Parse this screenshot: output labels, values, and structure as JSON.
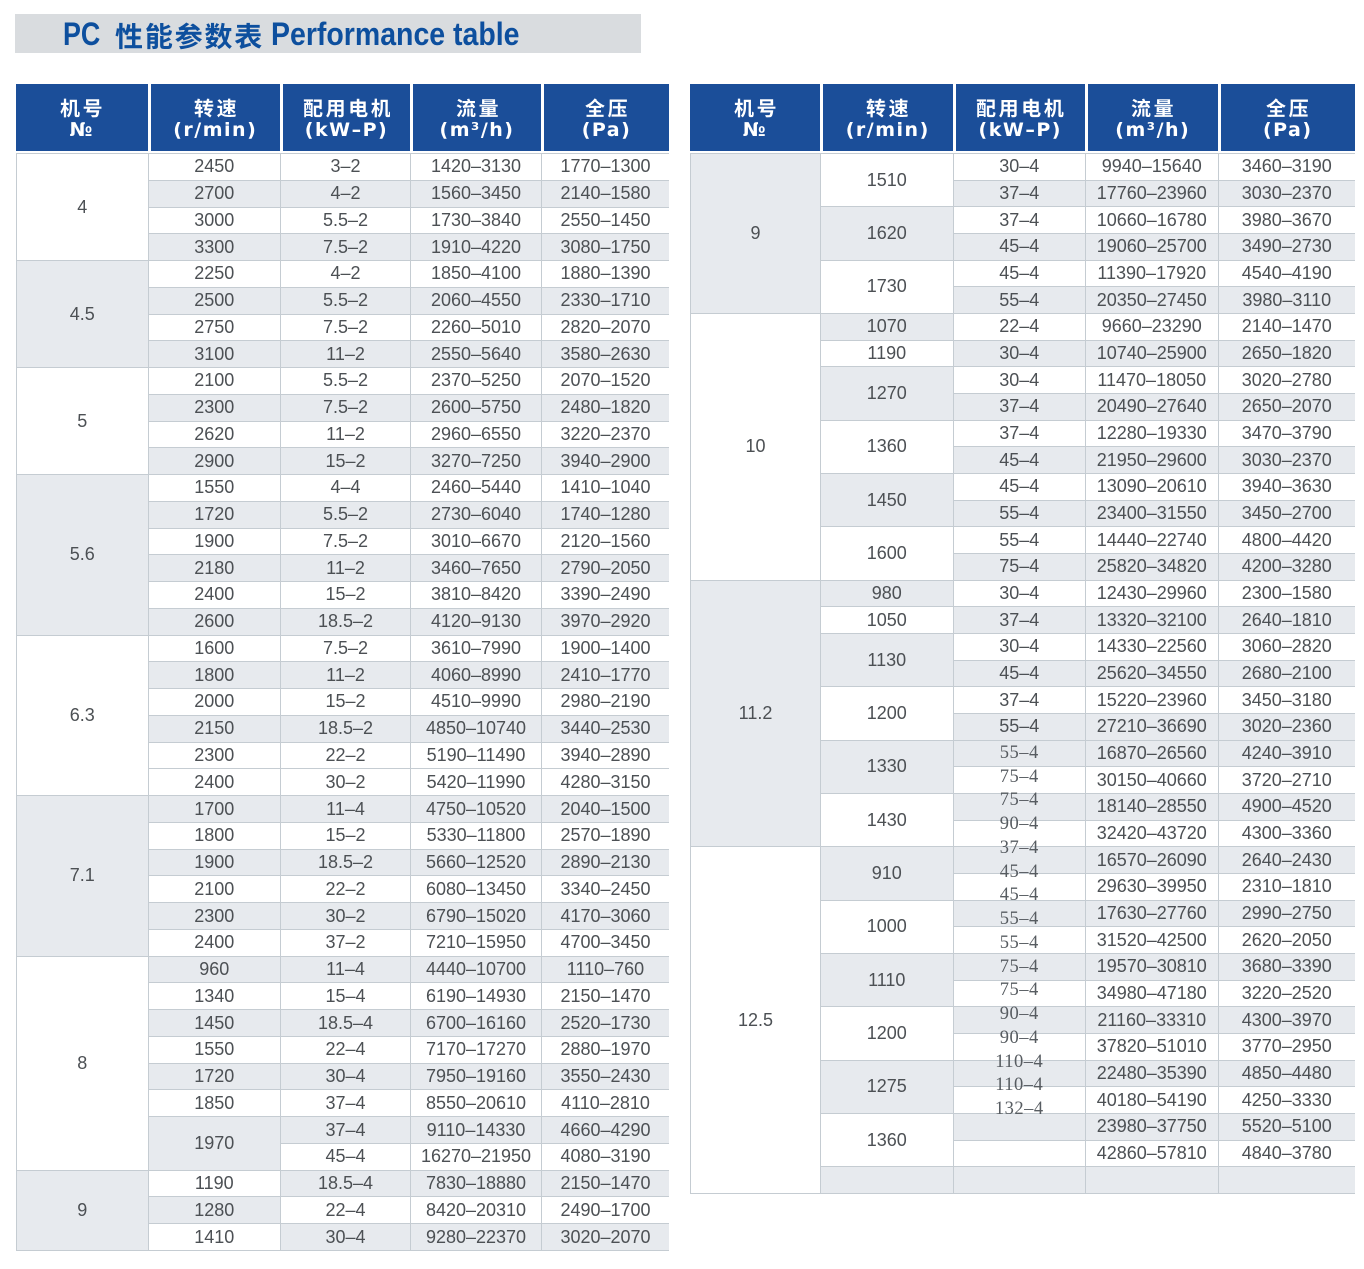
{
  "title": {
    "prefix": "PC",
    "zh": "性能参数表",
    "en": "Performance table"
  },
  "columns": [
    {
      "zh": "机号",
      "sub": "№"
    },
    {
      "zh": "转速",
      "sub": "(r/min)"
    },
    {
      "zh": "配用电机",
      "sub": "(kW–P)"
    },
    {
      "zh": "流量",
      "sub": "(m³/h)"
    },
    {
      "zh": "全压",
      "sub": "(Pa)"
    }
  ],
  "colors": {
    "header_blue": "#1b4e99",
    "title_blue": "#0d4f9e",
    "title_band_gray": "#d9dcdf",
    "row_gray": "#e7eaee",
    "border": "#c5ccd2",
    "text": "#43474a"
  },
  "left_table": {
    "groups": [
      {
        "no": "4",
        "no_shade": "w",
        "rows": [
          {
            "speed": "2450",
            "kw": "3–2",
            "flow": "1420–3130",
            "press": "1770–1300",
            "shade": "w"
          },
          {
            "speed": "2700",
            "kw": "4–2",
            "flow": "1560–3450",
            "press": "2140–1580",
            "shade": "g"
          },
          {
            "speed": "3000",
            "kw": "5.5–2",
            "flow": "1730–3840",
            "press": "2550–1450",
            "shade": "w"
          },
          {
            "speed": "3300",
            "kw": "7.5–2",
            "flow": "1910–4220",
            "press": "3080–1750",
            "shade": "g"
          }
        ]
      },
      {
        "no": "4.5",
        "no_shade": "g",
        "rows": [
          {
            "speed": "2250",
            "kw": "4–2",
            "flow": "1850–4100",
            "press": "1880–1390",
            "shade": "w"
          },
          {
            "speed": "2500",
            "kw": "5.5–2",
            "flow": "2060–4550",
            "press": "2330–1710",
            "shade": "g"
          },
          {
            "speed": "2750",
            "kw": "7.5–2",
            "flow": "2260–5010",
            "press": "2820–2070",
            "shade": "w"
          },
          {
            "speed": "3100",
            "kw": "11–2",
            "flow": "2550–5640",
            "press": "3580–2630",
            "shade": "g"
          }
        ]
      },
      {
        "no": "5",
        "no_shade": "w",
        "rows": [
          {
            "speed": "2100",
            "kw": "5.5–2",
            "flow": "2370–5250",
            "press": "2070–1520",
            "shade": "w"
          },
          {
            "speed": "2300",
            "kw": "7.5–2",
            "flow": "2600–5750",
            "press": "2480–1820",
            "shade": "g"
          },
          {
            "speed": "2620",
            "kw": "11–2",
            "flow": "2960–6550",
            "press": "3220–2370",
            "shade": "w"
          },
          {
            "speed": "2900",
            "kw": "15–2",
            "flow": "3270–7250",
            "press": "3940–2900",
            "shade": "g"
          }
        ]
      },
      {
        "no": "5.6",
        "no_shade": "g",
        "rows": [
          {
            "speed": "1550",
            "kw": "4–4",
            "flow": "2460–5440",
            "press": "1410–1040",
            "shade": "w"
          },
          {
            "speed": "1720",
            "kw": "5.5–2",
            "flow": "2730–6040",
            "press": "1740–1280",
            "shade": "g"
          },
          {
            "speed": "1900",
            "kw": "7.5–2",
            "flow": "3010–6670",
            "press": "2120–1560",
            "shade": "w"
          },
          {
            "speed": "2180",
            "kw": "11–2",
            "flow": "3460–7650",
            "press": "2790–2050",
            "shade": "g"
          },
          {
            "speed": "2400",
            "kw": "15–2",
            "flow": "3810–8420",
            "press": "3390–2490",
            "shade": "w"
          },
          {
            "speed": "2600",
            "kw": "18.5–2",
            "flow": "4120–9130",
            "press": "3970–2920",
            "shade": "g"
          }
        ]
      },
      {
        "no": "6.3",
        "no_shade": "w",
        "rows": [
          {
            "speed": "1600",
            "kw": "7.5–2",
            "flow": "3610–7990",
            "press": "1900–1400",
            "shade": "w"
          },
          {
            "speed": "1800",
            "kw": "11–2",
            "flow": "4060–8990",
            "press": "2410–1770",
            "shade": "g"
          },
          {
            "speed": "2000",
            "kw": "15–2",
            "flow": "4510–9990",
            "press": "2980–2190",
            "shade": "w"
          },
          {
            "speed": "2150",
            "kw": "18.5–2",
            "flow": "4850–10740",
            "press": "3440–2530",
            "shade": "g"
          },
          {
            "speed": "2300",
            "kw": "22–2",
            "flow": "5190–11490",
            "press": "3940–2890",
            "shade": "w"
          },
          {
            "speed": "2400",
            "kw": "30–2",
            "flow": "5420–11990",
            "press": "4280–3150",
            "shade": "w"
          }
        ]
      },
      {
        "no": "7.1",
        "no_shade": "g",
        "rows": [
          {
            "speed": "1700",
            "kw": "11–4",
            "flow": "4750–10520",
            "press": "2040–1500",
            "shade": "g"
          },
          {
            "speed": "1800",
            "kw": "15–2",
            "flow": "5330–11800",
            "press": "2570–1890",
            "shade": "w"
          },
          {
            "speed": "1900",
            "kw": "18.5–2",
            "flow": "5660–12520",
            "press": "2890–2130",
            "shade": "g"
          },
          {
            "speed": "2100",
            "kw": "22–2",
            "flow": "6080–13450",
            "press": "3340–2450",
            "shade": "w"
          },
          {
            "speed": "2300",
            "kw": "30–2",
            "flow": "6790–15020",
            "press": "4170–3060",
            "shade": "g"
          },
          {
            "speed": "2400",
            "kw": "37–2",
            "flow": "7210–15950",
            "press": "4700–3450",
            "shade": "w"
          }
        ]
      },
      {
        "no": "8",
        "no_shade": "w",
        "rows": [
          {
            "speed": "960",
            "kw": "11–4",
            "flow": "4440–10700",
            "press": "1110–760",
            "shade": "g"
          },
          {
            "speed": "1340",
            "kw": "15–4",
            "flow": "6190–14930",
            "press": "2150–1470",
            "shade": "w"
          },
          {
            "speed": "1450",
            "kw": "18.5–4",
            "flow": "6700–16160",
            "press": "2520–1730",
            "shade": "g"
          },
          {
            "speed": "1550",
            "kw": "22–4",
            "flow": "7170–17270",
            "press": "2880–1970",
            "shade": "w"
          },
          {
            "speed": "1720",
            "kw": "30–4",
            "flow": "7950–19160",
            "press": "3550–2430",
            "shade": "g"
          },
          {
            "speed": "1850",
            "kw": "37–4",
            "flow": "8550–20610",
            "press": "4110–2810",
            "shade": "w"
          },
          {
            "speed": "1970",
            "speed_span": 2,
            "speed_shade": "g",
            "kw": "37–4",
            "flow": "9110–14330",
            "press": "4660–4290",
            "shade": "g"
          },
          {
            "speed": null,
            "kw": "45–4",
            "flow": "16270–21950",
            "press": "4080–3190",
            "shade": "w"
          }
        ]
      },
      {
        "no": "9",
        "no_shade": "g",
        "rows": [
          {
            "speed": "1190",
            "speed_shade": "w",
            "kw": "18.5–4",
            "flow": "7830–18880",
            "press": "2150–1470",
            "shade": "g"
          },
          {
            "speed": "1280",
            "speed_shade": "g",
            "kw": "22–4",
            "flow": "8420–20310",
            "press": "2490–1700",
            "shade": "w"
          },
          {
            "speed": "1410",
            "speed_shade": "w",
            "kw": "30–4",
            "flow": "9280–22370",
            "press": "3020–2070",
            "shade": "g"
          }
        ]
      }
    ]
  },
  "right_table": {
    "groups": [
      {
        "no": "9",
        "no_shade": "g",
        "speeds": [
          {
            "speed": "1510",
            "speed_shade": "w",
            "rows": [
              {
                "kw": "30–4",
                "flow": "9940–15640",
                "press": "3460–3190",
                "shade": "w"
              },
              {
                "kw": "37–4",
                "flow": "17760–23960",
                "press": "3030–2370",
                "shade": "g"
              }
            ]
          },
          {
            "speed": "1620",
            "speed_shade": "g",
            "rows": [
              {
                "kw": "37–4",
                "flow": "10660–16780",
                "press": "3980–3670",
                "shade": "w"
              },
              {
                "kw": "45–4",
                "flow": "19060–25700",
                "press": "3490–2730",
                "shade": "g"
              }
            ]
          },
          {
            "speed": "1730",
            "speed_shade": "w",
            "rows": [
              {
                "kw": "45–4",
                "flow": "11390–17920",
                "press": "4540–4190",
                "shade": "w"
              },
              {
                "kw": "55–4",
                "flow": "20350–27450",
                "press": "3980–3110",
                "shade": "g"
              }
            ]
          }
        ]
      },
      {
        "no": "10",
        "no_shade": "w",
        "speeds": [
          {
            "speed": "1070",
            "speed_shade": "g",
            "rows": [
              {
                "kw": "22–4",
                "flow": "9660–23290",
                "press": "2140–1470",
                "shade": "w"
              }
            ]
          },
          {
            "speed": "1190",
            "speed_shade": "w",
            "rows": [
              {
                "kw": "30–4",
                "flow": "10740–25900",
                "press": "2650–1820",
                "shade": "g"
              }
            ]
          },
          {
            "speed": "1270",
            "speed_shade": "g",
            "rows": [
              {
                "kw": "30–4",
                "flow": "11470–18050",
                "press": "3020–2780",
                "shade": "w"
              },
              {
                "kw": "37–4",
                "flow": "20490–27640",
                "press": "2650–2070",
                "shade": "g"
              }
            ]
          },
          {
            "speed": "1360",
            "speed_shade": "w",
            "rows": [
              {
                "kw": "37–4",
                "flow": "12280–19330",
                "press": "3470–3790",
                "shade": "w"
              },
              {
                "kw": "45–4",
                "flow": "21950–29600",
                "press": "3030–2370",
                "shade": "g"
              }
            ]
          },
          {
            "speed": "1450",
            "speed_shade": "g",
            "rows": [
              {
                "kw": "45–4",
                "flow": "13090–20610",
                "press": "3940–3630",
                "shade": "w"
              },
              {
                "kw": "55–4",
                "flow": "23400–31550",
                "press": "3450–2700",
                "shade": "g"
              }
            ]
          },
          {
            "speed": "1600",
            "speed_shade": "w",
            "rows": [
              {
                "kw": "55–4",
                "flow": "14440–22740",
                "press": "4800–4420",
                "shade": "w"
              },
              {
                "kw": "75–4",
                "flow": "25820–34820",
                "press": "4200–3280",
                "shade": "g"
              }
            ]
          }
        ]
      },
      {
        "no": "11.2",
        "no_shade": "g",
        "speeds": [
          {
            "speed": "980",
            "speed_shade": "g",
            "rows": [
              {
                "kw": "30–4",
                "flow": "12430–29960",
                "press": "2300–1580",
                "shade": "w"
              }
            ]
          },
          {
            "speed": "1050",
            "speed_shade": "w",
            "rows": [
              {
                "kw": "37–4",
                "flow": "13320–32100",
                "press": "2640–1810",
                "shade": "g"
              }
            ]
          },
          {
            "speed": "1130",
            "speed_shade": "g",
            "rows": [
              {
                "kw": "30–4",
                "flow": "14330–22560",
                "press": "3060–2820",
                "shade": "w"
              },
              {
                "kw": "45–4",
                "flow": "25620–34550",
                "press": "2680–2100",
                "shade": "g"
              }
            ]
          },
          {
            "speed": "1200",
            "speed_shade": "w",
            "rows": [
              {
                "kw": "37–4",
                "flow": "15220–23960",
                "press": "3450–3180",
                "shade": "w"
              },
              {
                "kw": "55–4",
                "flow": "27210–36690",
                "press": "3020–2360",
                "shade": "g"
              }
            ]
          },
          {
            "speed": "1330",
            "speed_shade": "g",
            "rows": [
              {
                "kw": "55–4",
                "flow": "16870–26560",
                "press": "4240–3910",
                "shade": "g",
                "serif": true
              },
              {
                "kw": "75–4",
                "flow": "30150–40660",
                "press": "3720–2710",
                "shade": "w",
                "serif": true
              }
            ]
          },
          {
            "speed": "1430",
            "speed_shade": "w",
            "rows": [
              {
                "kw": "75–4",
                "flow": "18140–28550",
                "press": "4900–4520",
                "shade": "g",
                "serif": true
              },
              {
                "kw": "90–4",
                "flow": "32420–43720",
                "press": "4300–3360",
                "shade": "w",
                "serif": true
              }
            ]
          }
        ]
      },
      {
        "no": "12.5",
        "no_shade": "w",
        "speeds": [
          {
            "speed": "910",
            "speed_shade": "g",
            "rows": [
              {
                "kw": "37–4",
                "flow": "16570–26090",
                "press": "2640–2430",
                "shade": "g",
                "serif": true
              },
              {
                "kw": "45–4",
                "flow": "29630–39950",
                "press": "2310–1810",
                "shade": "w",
                "serif": true
              }
            ]
          },
          {
            "speed": "1000",
            "speed_shade": "w",
            "rows": [
              {
                "kw": "45–4",
                "flow": "17630–27760",
                "press": "2990–2750",
                "shade": "g",
                "serif": true
              },
              {
                "kw": "55–4",
                "flow": "31520–42500",
                "press": "2620–2050",
                "shade": "w",
                "serif": true
              }
            ]
          },
          {
            "speed": "1110",
            "speed_shade": "g",
            "rows": [
              {
                "kw": "55–4",
                "flow": "19570–30810",
                "press": "3680–3390",
                "shade": "g",
                "serif": true
              },
              {
                "kw": "75–4",
                "flow": "34980–47180",
                "press": "3220–2520",
                "shade": "w",
                "serif": true
              }
            ]
          },
          {
            "speed": "1200",
            "speed_shade": "w",
            "rows": [
              {
                "kw": "75–4",
                "flow": "21160–33310",
                "press": "4300–3970",
                "shade": "g",
                "serif": true
              },
              {
                "kw": "90–4",
                "flow": "37820–51010",
                "press": "3770–2950",
                "shade": "w",
                "serif": true
              }
            ]
          },
          {
            "speed": "1275",
            "speed_shade": "g",
            "rows": [
              {
                "kw": "90–4",
                "flow": "22480–35390",
                "press": "4850–4480",
                "shade": "g",
                "serif": true
              },
              {
                "kw": "110–4",
                "flow": "40180–54190",
                "press": "4250–3330",
                "shade": "w",
                "serif": true
              }
            ]
          },
          {
            "speed": "1360",
            "speed_shade": "w",
            "rows": [
              {
                "kw": "110–4",
                "flow": "23980–37750",
                "press": "5520–5100",
                "shade": "g",
                "serif": true
              },
              {
                "kw": "132–4",
                "flow": "42860–57810",
                "press": "4840–3780",
                "shade": "w",
                "serif": true
              }
            ]
          },
          {
            "speed": "",
            "speed_shade": "g",
            "rows": [
              {
                "kw": "",
                "flow": "",
                "press": "",
                "shade": "g"
              }
            ]
          }
        ]
      }
    ]
  }
}
